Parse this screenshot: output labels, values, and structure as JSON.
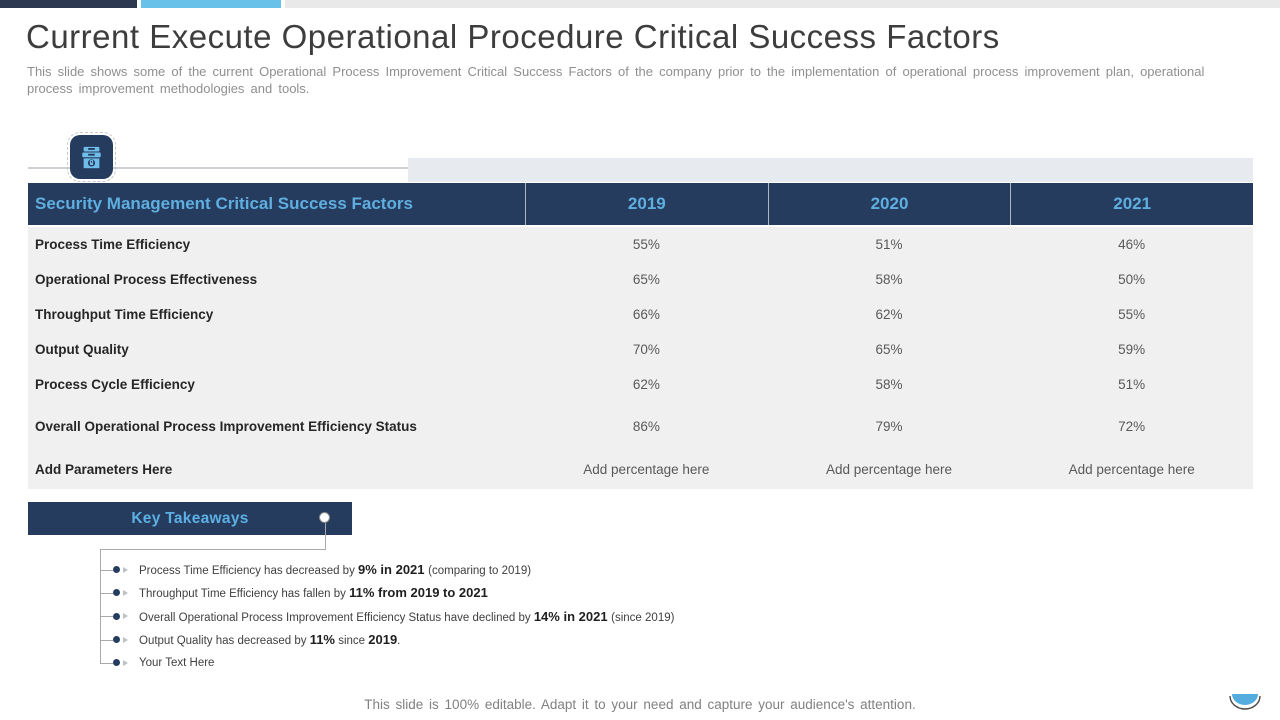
{
  "slide": {
    "title": "Current Execute Operational Procedure Critical Success Factors",
    "subtitle": "This slide shows some of the current Operational Process Improvement Critical Success Factors of the company prior to the implementation of operational process improvement plan, operational process improvement methodologies and tools.",
    "footer": "This slide is 100% editable. Adapt it to your need and capture your audience's attention."
  },
  "colors": {
    "navy": "#263C5E",
    "accent_blue": "#5FAEE0",
    "topbar_blue": "#67C1E8",
    "table_body_bg": "#F0F0F1"
  },
  "icons": {
    "security_icon": "security-cabinet-lock-icon",
    "logo": "half-circle-logo"
  },
  "table": {
    "header": {
      "factor_col": "Security Management Critical Success Factors",
      "years": [
        "2019",
        "2020",
        "2021"
      ]
    },
    "rows": [
      {
        "label": "Process Time Efficiency",
        "values": [
          "55%",
          "51%",
          "46%"
        ],
        "placeholder": false
      },
      {
        "label": "Operational Process Effectiveness",
        "values": [
          "65%",
          "58%",
          "50%"
        ],
        "placeholder": false
      },
      {
        "label": "Throughput Time Efficiency",
        "values": [
          "66%",
          "62%",
          "55%"
        ],
        "placeholder": false
      },
      {
        "label": "Output Quality",
        "values": [
          "70%",
          "65%",
          "59%"
        ],
        "placeholder": false
      },
      {
        "label": "Process Cycle Efficiency",
        "values": [
          "62%",
          "58%",
          "51%"
        ],
        "placeholder": false
      },
      {
        "label": "Overall Operational Process Improvement Efficiency Status",
        "values": [
          "86%",
          "79%",
          "72%"
        ],
        "placeholder": false
      },
      {
        "label": "Add Parameters Here",
        "values": [
          "Add percentage here",
          "Add percentage here",
          "Add percentage here"
        ],
        "placeholder": true
      }
    ]
  },
  "takeaways": {
    "title": "Key Takeaways",
    "items": [
      {
        "parts": [
          {
            "text": "Process Time Efficiency has decreased by ",
            "bold": false
          },
          {
            "text": "9%  in 2021 ",
            "bold": true
          },
          {
            "text": "(comparing to 2019)",
            "bold": false
          }
        ]
      },
      {
        "parts": [
          {
            "text": "Throughput Time Efficiency has fallen by ",
            "bold": false
          },
          {
            "text": "11%  from 2019 to 2021",
            "bold": true
          }
        ]
      },
      {
        "parts": [
          {
            "text": "Overall Operational Process Improvement Efficiency Status have declined by ",
            "bold": false
          },
          {
            "text": "14%  in 2021 ",
            "bold": true
          },
          {
            "text": "(since 2019)",
            "bold": false
          }
        ]
      },
      {
        "parts": [
          {
            "text": "Output Quality has decreased by ",
            "bold": false
          },
          {
            "text": "11%",
            "bold": true
          },
          {
            "text": " since ",
            "bold": false
          },
          {
            "text": "2019",
            "bold": true
          },
          {
            "text": ".",
            "bold": false
          }
        ]
      },
      {
        "parts": [
          {
            "text": "Your Text Here",
            "bold": false
          }
        ]
      }
    ]
  }
}
